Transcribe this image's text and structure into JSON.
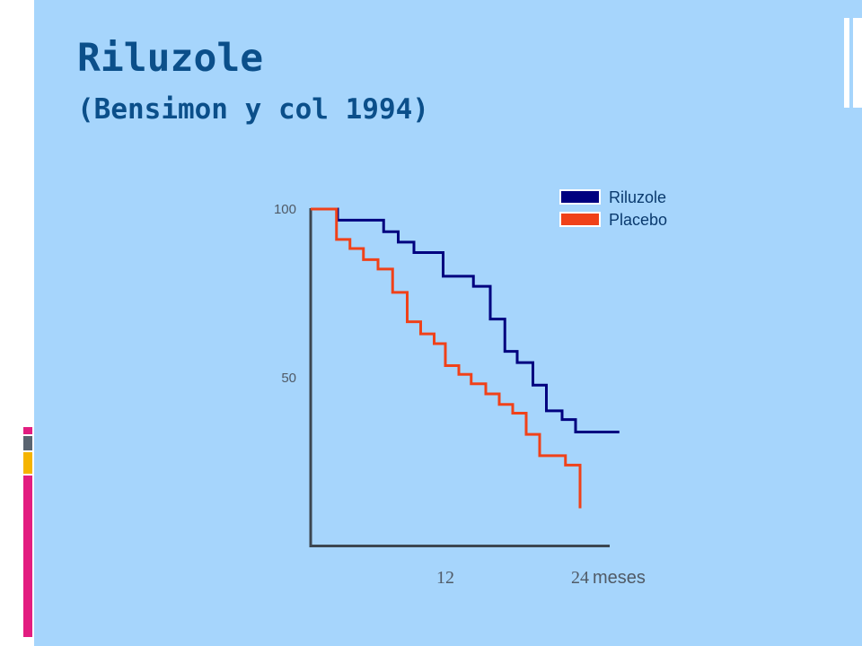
{
  "slide": {
    "title": "Riluzole",
    "subtitle": "(Bensimon y col 1994)",
    "colors": {
      "background": "#a6d5fc",
      "title": "#0b4f8a",
      "accent_magenta": "#e21d80",
      "accent_gray": "#5a6470",
      "accent_yellow": "#f5b400",
      "slide_frame": "#ffffff"
    }
  },
  "chart_data": {
    "type": "line",
    "line_shape": "step",
    "title": "",
    "xlabel": "",
    "ylabel": "",
    "xlim": [
      0,
      24
    ],
    "ylim": [
      0,
      100
    ],
    "x_ticks": [
      {
        "value": 12,
        "label": "12"
      },
      {
        "value": 24,
        "label": "24"
      }
    ],
    "x_unit": "meses",
    "y_ticks": [
      {
        "value": 100,
        "label": "100"
      },
      {
        "value": 50,
        "label": "50"
      }
    ],
    "grid": false,
    "legend": {
      "position": "top-right"
    },
    "series": [
      {
        "name": "Riluzole",
        "color": "#00007f",
        "points": [
          [
            0,
            100
          ],
          [
            2.4,
            100
          ],
          [
            2.4,
            96.7
          ],
          [
            6.5,
            96.7
          ],
          [
            6.5,
            93.3
          ],
          [
            7.8,
            93.3
          ],
          [
            7.8,
            90.2
          ],
          [
            9.2,
            90.2
          ],
          [
            9.2,
            87.1
          ],
          [
            11.8,
            87.1
          ],
          [
            11.8,
            80.1
          ],
          [
            14.5,
            80.1
          ],
          [
            14.5,
            77.1
          ],
          [
            16.0,
            77.1
          ],
          [
            16.0,
            67.4
          ],
          [
            17.3,
            67.4
          ],
          [
            17.3,
            57.8
          ],
          [
            18.4,
            57.8
          ],
          [
            18.4,
            54.5
          ],
          [
            19.8,
            54.5
          ],
          [
            19.8,
            47.8
          ],
          [
            21.0,
            47.8
          ],
          [
            21.0,
            40.2
          ],
          [
            22.4,
            40.2
          ],
          [
            22.4,
            37.6
          ],
          [
            23.6,
            37.6
          ],
          [
            23.6,
            33.9
          ],
          [
            27.5,
            33.9
          ]
        ]
      },
      {
        "name": "Placebo",
        "color": "#f04119",
        "points": [
          [
            0,
            100
          ],
          [
            2.3,
            100
          ],
          [
            2.3,
            91.0
          ],
          [
            3.5,
            91.0
          ],
          [
            3.5,
            88.3
          ],
          [
            4.7,
            88.3
          ],
          [
            4.7,
            85.0
          ],
          [
            6.0,
            85.0
          ],
          [
            6.0,
            82.2
          ],
          [
            7.3,
            82.2
          ],
          [
            7.3,
            75.3
          ],
          [
            8.6,
            75.3
          ],
          [
            8.6,
            66.6
          ],
          [
            9.8,
            66.6
          ],
          [
            9.8,
            63.0
          ],
          [
            11.0,
            63.0
          ],
          [
            11.0,
            60.1
          ],
          [
            12.0,
            60.1
          ],
          [
            12.0,
            53.6
          ],
          [
            13.2,
            53.6
          ],
          [
            13.2,
            51.0
          ],
          [
            14.3,
            51.0
          ],
          [
            14.3,
            48.2
          ],
          [
            15.6,
            48.2
          ],
          [
            15.6,
            45.2
          ],
          [
            16.8,
            45.2
          ],
          [
            16.8,
            42.1
          ],
          [
            18.0,
            42.1
          ],
          [
            18.0,
            39.5
          ],
          [
            19.2,
            39.5
          ],
          [
            19.2,
            33.2
          ],
          [
            20.4,
            33.2
          ],
          [
            20.4,
            26.9
          ],
          [
            22.7,
            26.9
          ],
          [
            22.7,
            24.1
          ],
          [
            24.0,
            24.1
          ],
          [
            24.0,
            11.3
          ]
        ]
      }
    ]
  }
}
